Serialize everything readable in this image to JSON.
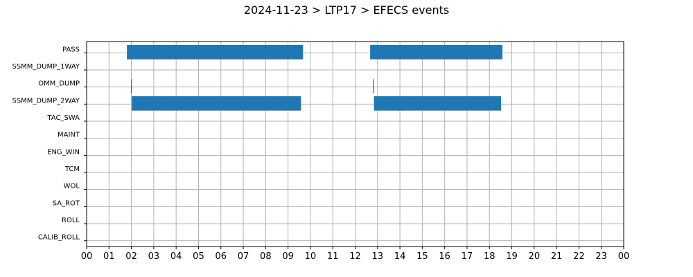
{
  "chart_data": {
    "type": "bar",
    "orientation": "horizontal-timeline",
    "title": "2024-11-23 > LTP17 > EFECS events",
    "xlabel": "",
    "ylabel": "",
    "xlim": [
      0,
      24
    ],
    "x_tick_labels": [
      "00",
      "01",
      "02",
      "03",
      "04",
      "05",
      "06",
      "07",
      "08",
      "09",
      "10",
      "11",
      "12",
      "13",
      "14",
      "15",
      "16",
      "17",
      "18",
      "19",
      "20",
      "21",
      "22",
      "23",
      "00"
    ],
    "categories": [
      "PASS",
      "SSMM_DUMP_1WAY",
      "OMM_DUMP",
      "SSMM_DUMP_2WAY",
      "TAC_SWA",
      "MAINT",
      "ENG_WIN",
      "TCM",
      "WOL",
      "SA_ROT",
      "ROLL",
      "CALIB_ROLL"
    ],
    "grid": true,
    "bar_color": "#1f77b4",
    "events": [
      {
        "category": "PASS",
        "start": 1.8,
        "end": 9.67
      },
      {
        "category": "PASS",
        "start": 12.67,
        "end": 18.58
      },
      {
        "category": "OMM_DUMP",
        "start": 1.98,
        "end": 2.02
      },
      {
        "category": "OMM_DUMP",
        "start": 12.8,
        "end": 12.84
      },
      {
        "category": "SSMM_DUMP_2WAY",
        "start": 2.02,
        "end": 9.58
      },
      {
        "category": "SSMM_DUMP_2WAY",
        "start": 12.84,
        "end": 18.52
      }
    ]
  }
}
